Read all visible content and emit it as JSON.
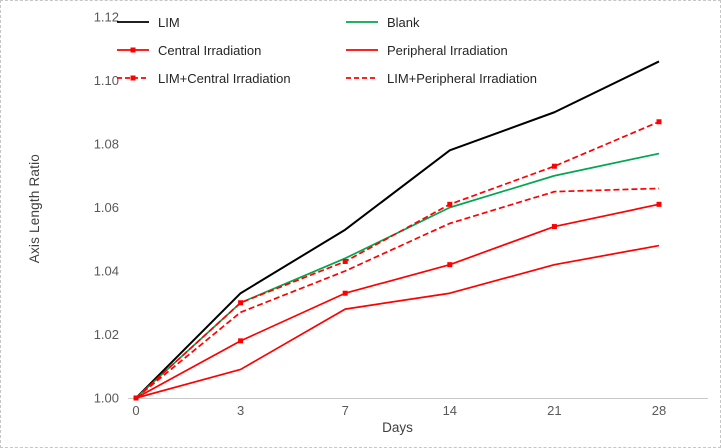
{
  "chart_data": {
    "type": "line",
    "x": [
      0,
      3,
      7,
      14,
      21,
      28
    ],
    "xlabel": "Days",
    "ylabel": "Axis Length Ratio",
    "ylim": [
      1.0,
      1.12
    ],
    "yticks": [
      1.0,
      1.02,
      1.04,
      1.06,
      1.08,
      1.1,
      1.12
    ],
    "grid": false,
    "legend_position": "top-left",
    "legend_columns": 2,
    "series": [
      {
        "name": "LIM",
        "color": "#000000",
        "dash": "solid",
        "marker": "none",
        "values": [
          1.0,
          1.033,
          1.053,
          1.078,
          1.09,
          1.106
        ]
      },
      {
        "name": "Blank",
        "color": "#00A651",
        "dash": "solid",
        "marker": "none",
        "values": [
          1.0,
          1.03,
          1.044,
          1.06,
          1.07,
          1.077
        ]
      },
      {
        "name": "Central Irradiation",
        "color": "#FF0000",
        "dash": "solid",
        "marker": "square",
        "values": [
          1.0,
          1.018,
          1.033,
          1.042,
          1.054,
          1.061
        ]
      },
      {
        "name": "Peripheral Irradiation",
        "color": "#FF0000",
        "dash": "solid",
        "marker": "none",
        "values": [
          1.0,
          1.009,
          1.028,
          1.033,
          1.042,
          1.048
        ]
      },
      {
        "name": "LIM+Central Irradiation",
        "color": "#FF0000",
        "dash": "dashed",
        "marker": "square",
        "values": [
          1.0,
          1.03,
          1.043,
          1.061,
          1.073,
          1.087
        ]
      },
      {
        "name": "LIM+Peripheral Irradiation",
        "color": "#FF0000",
        "dash": "dashed",
        "marker": "none",
        "values": [
          1.0,
          1.027,
          1.04,
          1.055,
          1.065,
          1.066
        ]
      }
    ]
  }
}
